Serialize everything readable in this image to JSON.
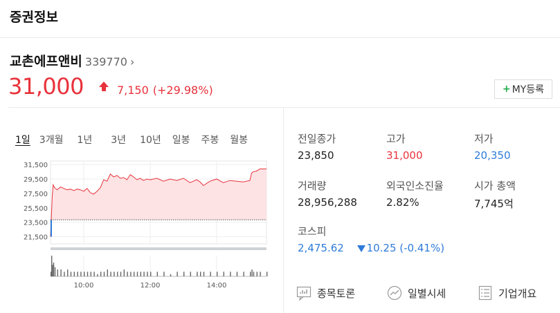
{
  "header": {
    "title": "증권정보"
  },
  "stock": {
    "name": "교촌에프앤비",
    "code": "339770",
    "price": "31,000",
    "change": "7,150",
    "change_pct": "(+29.98%)"
  },
  "my_button": {
    "plus": "+",
    "label": "MY등록"
  },
  "tabs": [
    "1일",
    "3개월",
    "1년",
    "3년",
    "10년",
    "일봉",
    "주봉",
    "월봉"
  ],
  "stats": {
    "prev_close": {
      "label": "전일종가",
      "value": "23,850"
    },
    "high": {
      "label": "고가",
      "value": "31,000"
    },
    "low": {
      "label": "저가",
      "value": "20,350"
    },
    "volume": {
      "label": "거래량",
      "value": "28,956,288"
    },
    "foreign": {
      "label": "외국인소진율",
      "value": "2.82%"
    },
    "market_cap": {
      "label": "시가 총액",
      "value": "7,745",
      "unit": "억"
    },
    "index": {
      "label": "코스피",
      "value": "2,475.62",
      "change": "10.25 (-0.41%)"
    }
  },
  "links": {
    "discussion": "종목토론",
    "daily": "일별시세",
    "company": "기업개요"
  },
  "colors": {
    "up": "#e8323c",
    "down": "#2e7bd9",
    "accent_green": "#1faa4a"
  },
  "chart_data": {
    "type": "area",
    "yticks": [
      "31,500",
      "29,500",
      "27,500",
      "25,500",
      "23,500",
      "21,500"
    ],
    "ylim": [
      20500,
      32000
    ],
    "xticks": [
      "10:00",
      "12:00",
      "14:00"
    ],
    "xtick_hours": [
      10,
      12,
      14
    ],
    "xlim": [
      9,
      15.5
    ],
    "prev_close": 23850,
    "series": [
      {
        "x": [
          9,
          9.02,
          9.05,
          9.08,
          9.12,
          9.2,
          9.3,
          9.4,
          9.5,
          9.6,
          9.7,
          9.8,
          9.9,
          10.0,
          10.1,
          10.2,
          10.3,
          10.4,
          10.5,
          10.6,
          10.7,
          10.8,
          10.9,
          11.0,
          11.1,
          11.2,
          11.3,
          11.4,
          11.5,
          11.6,
          11.7,
          11.8,
          11.9,
          12.0,
          12.2,
          12.4,
          12.6,
          12.8,
          13.0,
          13.2,
          13.4,
          13.5,
          13.6,
          13.8,
          14.0,
          14.2,
          14.4,
          14.6,
          14.8,
          15.0,
          15.05,
          15.1,
          15.2,
          15.3,
          15.5
        ],
        "y": [
          21500,
          23800,
          27000,
          28700,
          28300,
          28000,
          28400,
          28200,
          28000,
          28100,
          27900,
          28100,
          28000,
          27800,
          28200,
          27600,
          27400,
          27800,
          28300,
          29400,
          29200,
          30200,
          29800,
          30000,
          29600,
          29700,
          29400,
          30100,
          29800,
          29400,
          29600,
          29300,
          29500,
          29400,
          29600,
          29200,
          29500,
          29300,
          29600,
          29000,
          29400,
          29100,
          28600,
          29200,
          29500,
          29000,
          29300,
          29200,
          29100,
          29300,
          30300,
          30500,
          30600,
          30900,
          30900
        ]
      }
    ],
    "volume": [
      2,
      9,
      5,
      6,
      4,
      3,
      3,
      2,
      3,
      2,
      2,
      2,
      2,
      2,
      2,
      2,
      2,
      1,
      2,
      2,
      3,
      2,
      2,
      2,
      2,
      3,
      2,
      2,
      2,
      2,
      2,
      2,
      2,
      2,
      2,
      2,
      1,
      2,
      2,
      2,
      2,
      2,
      2,
      2,
      2,
      2,
      2,
      2,
      2,
      2,
      3,
      2,
      2,
      2,
      2
    ],
    "grid": true,
    "legend": "none"
  }
}
